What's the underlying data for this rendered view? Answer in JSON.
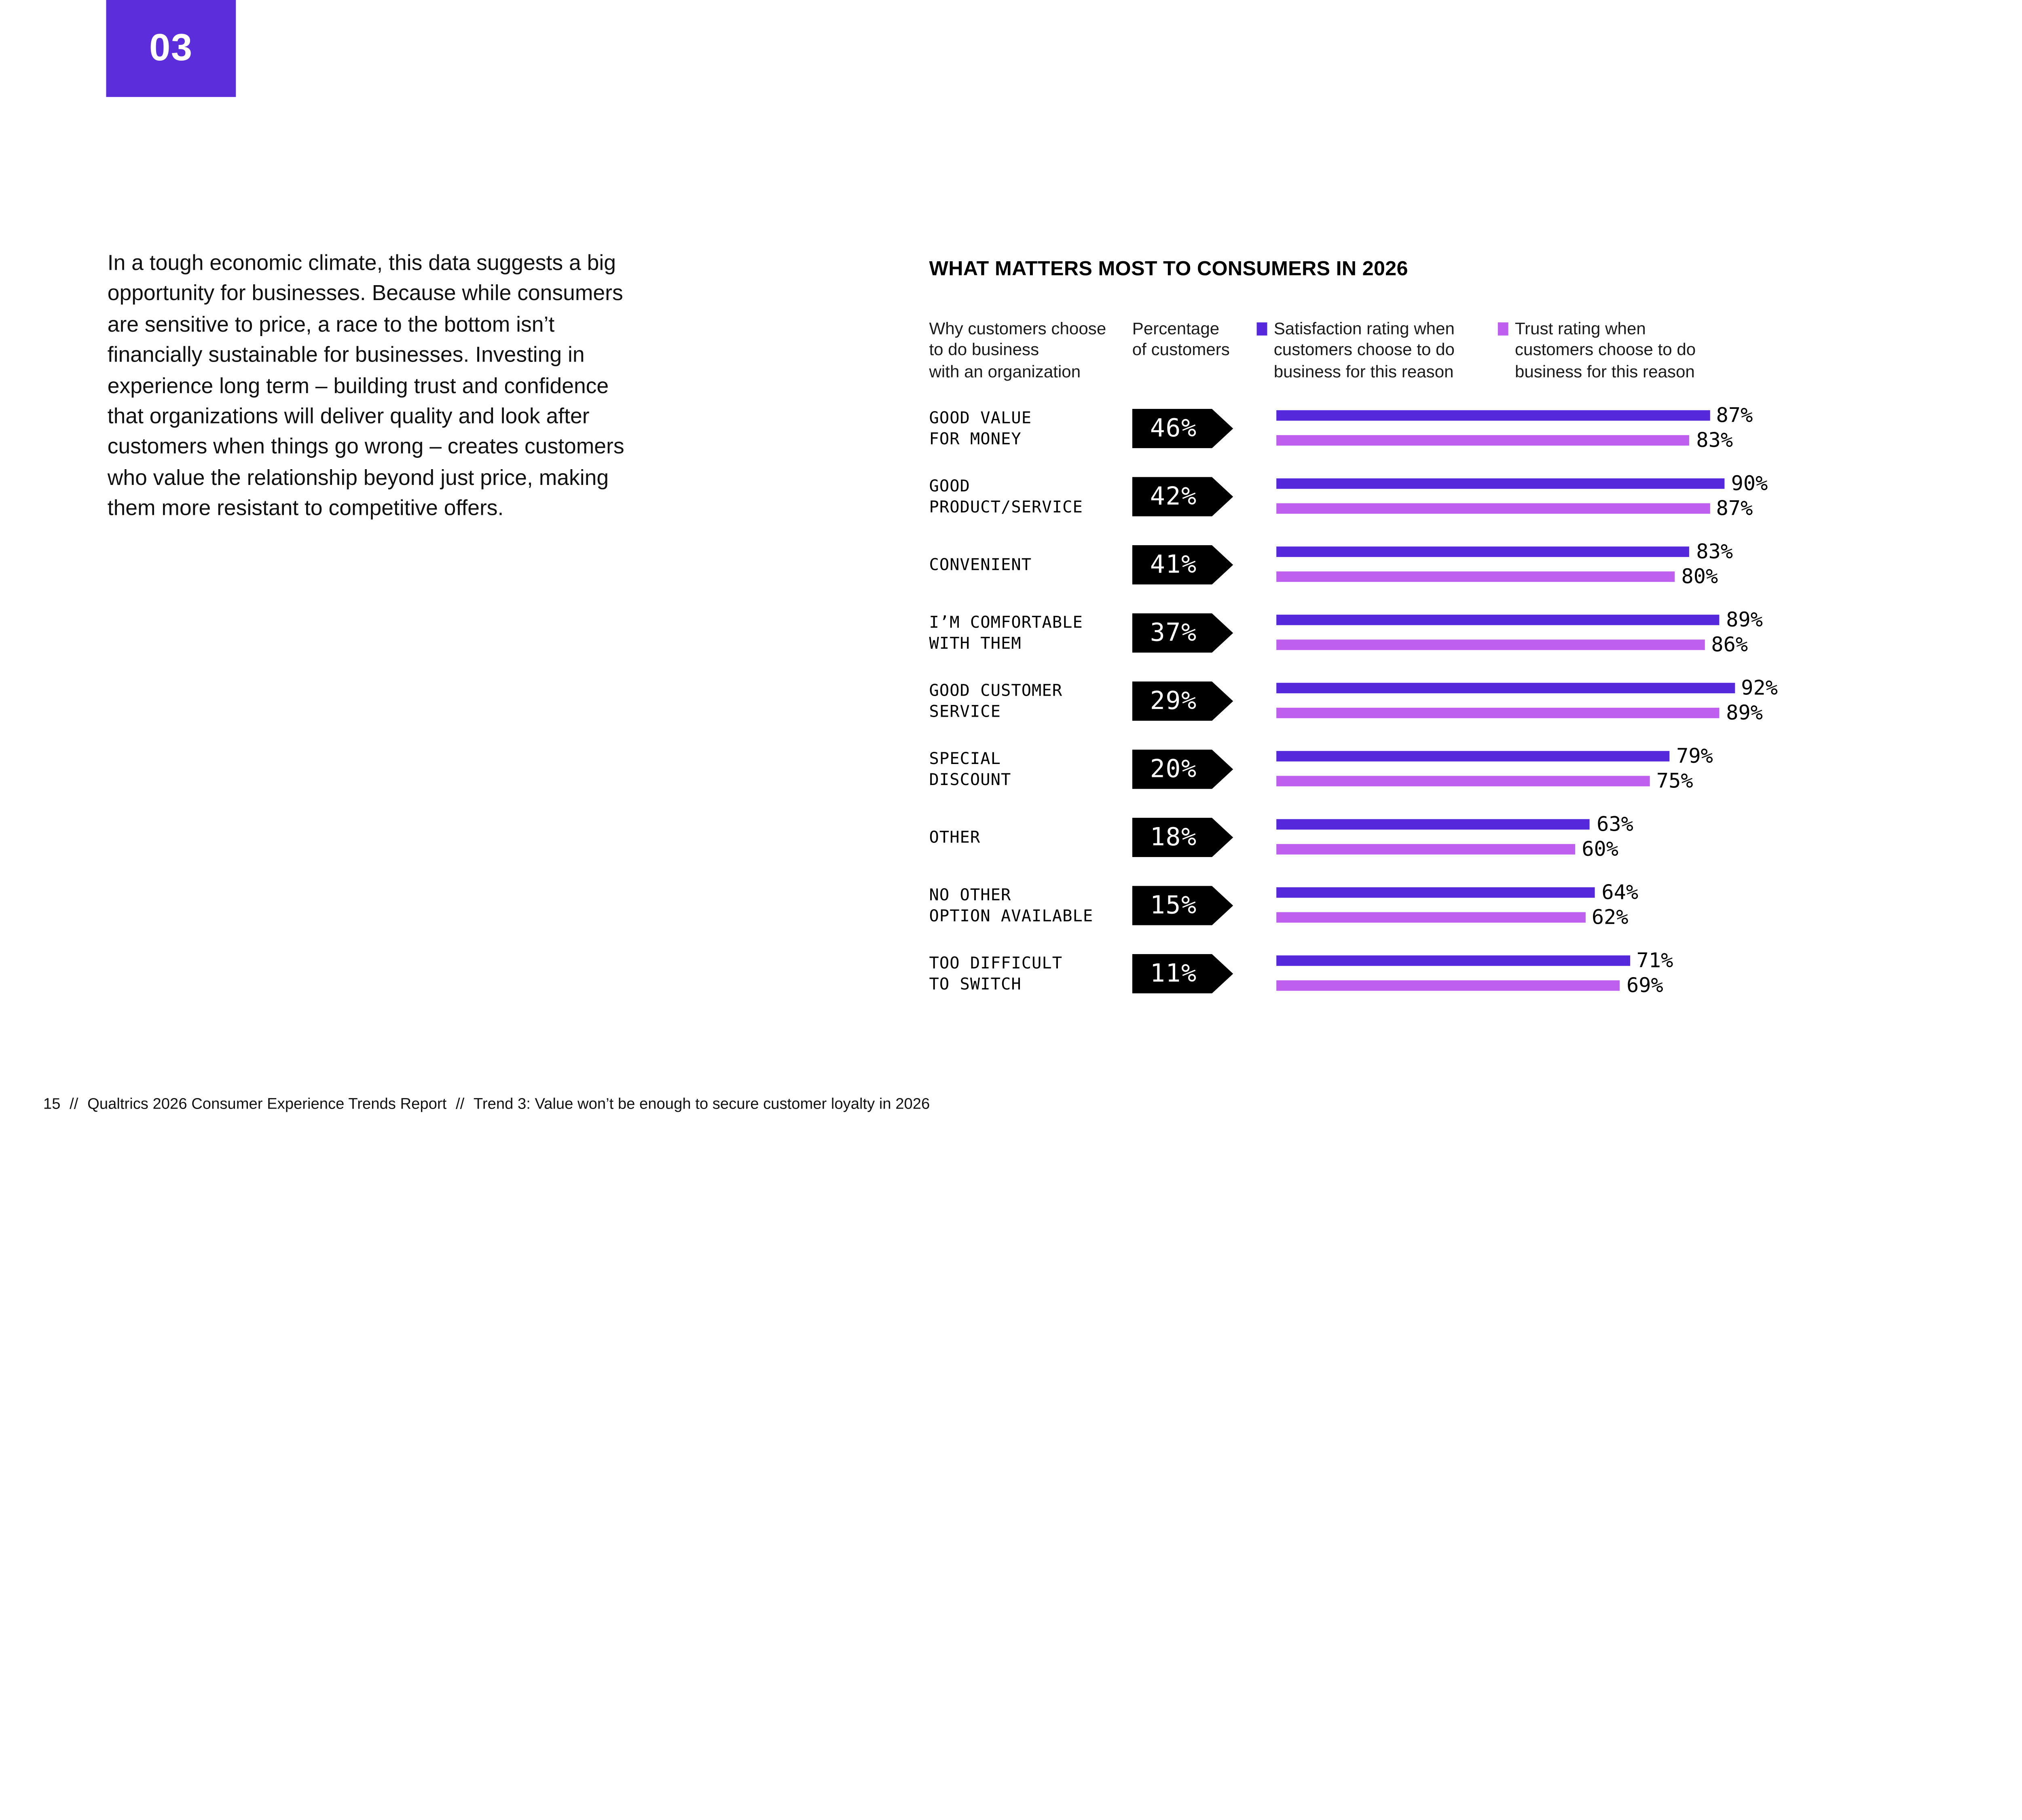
{
  "page": {
    "badge_label": "03",
    "body_paragraph": "In a tough economic climate, this data suggests a big opportunity for businesses. Because while consumers are sensitive to price, a race to the bottom isn’t financially sustainable for businesses. Investing in experience long term – building trust and confidence that organizations will deliver quality and look after customers when things go wrong – creates customers who value the relationship beyond just price, making them more resistant to competitive offers.",
    "footer": {
      "page_number": "15",
      "sep1": "//",
      "report_title": "Qualtrics 2026 Consumer Experience Trends Report",
      "sep2": "//",
      "trend_title": "Trend 3: Value won’t be enough to secure customer loyalty in 2026"
    },
    "colors": {
      "badge_purple": "#5B2DDB"
    }
  },
  "chart_data": {
    "type": "bar",
    "orientation": "horizontal",
    "title": "WHAT MATTERS MOST TO CONSUMERS IN 2026",
    "value_axis_range": [
      0,
      100
    ],
    "grid": false,
    "legend_position": "top",
    "columns": {
      "reason_l1": "Why customers choose",
      "reason_l2": "to do business",
      "reason_l3": "with an organization",
      "pct_l1": "Percentage",
      "pct_l2": "of customers"
    },
    "legend": [
      {
        "series": "satisfaction",
        "color": "#5628DC",
        "l1": "Satisfaction rating when",
        "l2": "customers choose to do",
        "l3": "business for this reason"
      },
      {
        "series": "trust",
        "color": "#BE5FF0",
        "l1": "Trust rating when",
        "l2": "customers choose to do",
        "l3": "business for this reason"
      }
    ],
    "rows": [
      {
        "label_lines": [
          "GOOD VALUE",
          "FOR MONEY"
        ],
        "customers": "46%",
        "satisfaction": 87,
        "trust": 83
      },
      {
        "label_lines": [
          "GOOD",
          "PRODUCT/SERVICE"
        ],
        "customers": "42%",
        "satisfaction": 90,
        "trust": 87
      },
      {
        "label_lines": [
          "CONVENIENT"
        ],
        "customers": "41%",
        "satisfaction": 83,
        "trust": 80
      },
      {
        "label_lines": [
          "I’M COMFORTABLE",
          "WITH THEM"
        ],
        "customers": "37%",
        "satisfaction": 89,
        "trust": 86
      },
      {
        "label_lines": [
          "GOOD CUSTOMER",
          "SERVICE"
        ],
        "customers": "29%",
        "satisfaction": 92,
        "trust": 89
      },
      {
        "label_lines": [
          "SPECIAL",
          "DISCOUNT"
        ],
        "customers": "20%",
        "satisfaction": 79,
        "trust": 75
      },
      {
        "label_lines": [
          "OTHER"
        ],
        "customers": "18%",
        "satisfaction": 63,
        "trust": 60
      },
      {
        "label_lines": [
          "NO OTHER",
          "OPTION AVAILABLE"
        ],
        "customers": "15%",
        "satisfaction": 64,
        "trust": 62
      },
      {
        "label_lines": [
          "TOO DIFFICULT",
          "TO SWITCH"
        ],
        "customers": "11%",
        "satisfaction": 71,
        "trust": 69
      }
    ]
  }
}
